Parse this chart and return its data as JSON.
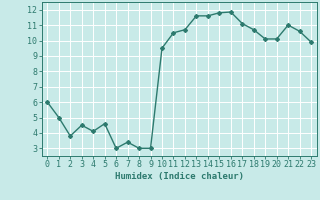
{
  "x": [
    0,
    1,
    2,
    3,
    4,
    5,
    6,
    7,
    8,
    9,
    10,
    11,
    12,
    13,
    14,
    15,
    16,
    17,
    18,
    19,
    20,
    21,
    22,
    23
  ],
  "y": [
    6.0,
    5.0,
    3.8,
    4.5,
    4.1,
    4.6,
    3.0,
    3.4,
    3.0,
    3.0,
    9.5,
    10.5,
    10.7,
    11.6,
    11.6,
    11.8,
    11.85,
    11.1,
    10.7,
    10.1,
    10.1,
    11.0,
    10.6,
    9.9
  ],
  "line_color": "#2d7a6e",
  "marker": "D",
  "marker_size": 2,
  "bg_color": "#c8eae8",
  "grid_color": "#ffffff",
  "xlabel": "Humidex (Indice chaleur)",
  "xlim": [
    -0.5,
    23.5
  ],
  "ylim": [
    2.5,
    12.5
  ],
  "yticks": [
    3,
    4,
    5,
    6,
    7,
    8,
    9,
    10,
    11,
    12
  ],
  "xticks": [
    0,
    1,
    2,
    3,
    4,
    5,
    6,
    7,
    8,
    9,
    10,
    11,
    12,
    13,
    14,
    15,
    16,
    17,
    18,
    19,
    20,
    21,
    22,
    23
  ],
  "tick_color": "#2d7a6e",
  "label_fontsize": 6.5,
  "tick_fontsize": 6,
  "line_width": 1.0,
  "spine_color": "#2d7a6e"
}
